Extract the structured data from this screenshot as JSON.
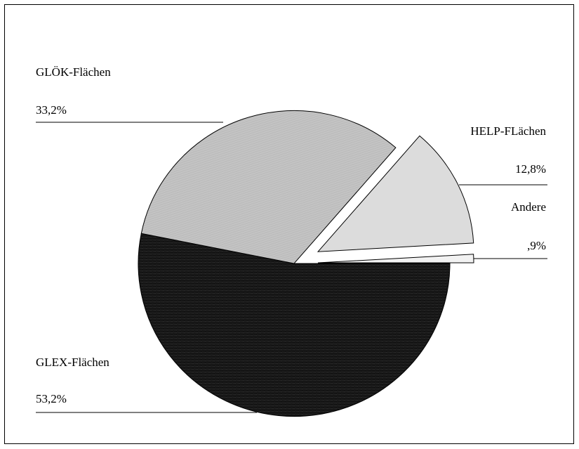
{
  "chart_data": {
    "type": "pie",
    "exploded": true,
    "grid": false,
    "legend": "none",
    "slices": [
      {
        "label": "GLEX-Flächen",
        "value_label": "53,2%",
        "value": 53.2,
        "color": "#1a1a1a"
      },
      {
        "label": "GLÖK-Flächen",
        "value_label": "33,2%",
        "value": 33.2,
        "color": "#b8b8b8"
      },
      {
        "label": "HELP-FLächen",
        "value_label": "12,8%",
        "value": 12.8,
        "color": "#dcdcdc"
      },
      {
        "label": "Andere",
        "value_label": ",9%",
        "value": 0.9,
        "color": "#f2f2f2"
      }
    ]
  }
}
